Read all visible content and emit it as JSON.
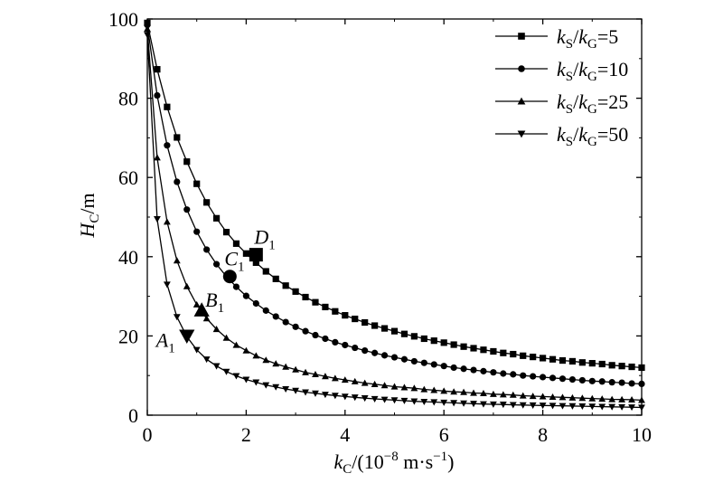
{
  "chart_data": {
    "type": "line",
    "xlabel": {
      "main": "k",
      "sub": "C",
      "rest_open": "/(10",
      "exp": "−8",
      "unit_mid": " m·s",
      "exp2": "−1",
      "rest_close": ")"
    },
    "ylabel": {
      "main": "H",
      "sub": "C",
      "rest": "/m"
    },
    "xlim": [
      0,
      10
    ],
    "ylim": [
      0,
      100
    ],
    "xticks": [
      "0",
      "2",
      "4",
      "6",
      "8",
      "10"
    ],
    "yticks": [
      "0",
      "20",
      "40",
      "60",
      "80",
      "100"
    ],
    "grid": false,
    "legend_position": "top-right",
    "x": [
      0.0,
      0.2,
      0.4,
      0.6,
      0.8,
      1.0,
      1.2,
      1.4,
      1.6,
      1.8,
      2.0,
      2.2,
      2.4,
      2.6,
      2.8,
      3.0,
      3.2,
      3.4,
      3.6,
      3.8,
      4.0,
      4.2,
      4.4,
      4.6,
      4.8,
      5.0,
      5.2,
      5.4,
      5.6,
      5.8,
      6.0,
      6.2,
      6.4,
      6.6,
      6.8,
      7.0,
      7.2,
      7.4,
      7.6,
      7.8,
      8.0,
      8.2,
      8.4,
      8.6,
      8.8,
      9.0,
      9.2,
      9.4,
      9.6,
      9.8,
      10.0
    ],
    "series": [
      {
        "name": "kS/kG=5",
        "label_k": "k",
        "label_sub1": "S",
        "label_mid": "/",
        "label_k2": "k",
        "label_sub2": "G",
        "label_val": "=5",
        "marker": "square",
        "values": [
          99.0,
          87.3,
          77.8,
          70.1,
          64.0,
          58.4,
          53.7,
          49.7,
          46.2,
          43.3,
          40.8,
          38.5,
          36.3,
          34.4,
          32.7,
          31.2,
          29.8,
          28.5,
          27.3,
          26.2,
          25.2,
          24.3,
          23.4,
          22.6,
          21.9,
          21.2,
          20.5,
          19.9,
          19.3,
          18.8,
          18.3,
          17.8,
          17.3,
          16.9,
          16.5,
          16.1,
          15.7,
          15.4,
          15.0,
          14.7,
          14.4,
          14.1,
          13.8,
          13.6,
          13.3,
          13.1,
          12.9,
          12.6,
          12.4,
          12.2,
          12.0
        ]
      },
      {
        "name": "kS/kG=10",
        "label_k": "k",
        "label_sub1": "S",
        "label_mid": "/",
        "label_k2": "k",
        "label_sub2": "G",
        "label_val": "=10",
        "marker": "circle",
        "values": [
          98.5,
          80.7,
          68.1,
          58.9,
          51.9,
          46.3,
          41.8,
          38.1,
          35.0,
          32.4,
          30.1,
          28.2,
          26.4,
          24.9,
          23.5,
          22.3,
          21.2,
          20.2,
          19.3,
          18.4,
          17.7,
          17.0,
          16.3,
          15.7,
          15.1,
          14.6,
          14.1,
          13.6,
          13.2,
          12.8,
          12.4,
          12.0,
          11.7,
          11.4,
          11.1,
          10.8,
          10.5,
          10.3,
          10.0,
          9.8,
          9.6,
          9.4,
          9.2,
          9.0,
          8.8,
          8.6,
          8.5,
          8.3,
          8.2,
          8.0,
          7.9
        ]
      },
      {
        "name": "kS/kG=25",
        "label_k": "k",
        "label_sub1": "S",
        "label_mid": "/",
        "label_k2": "k",
        "label_sub2": "G",
        "label_val": "=25",
        "marker": "triangle-up",
        "values": [
          97.5,
          65.0,
          48.8,
          39.0,
          32.5,
          27.9,
          24.4,
          21.7,
          19.5,
          17.7,
          16.3,
          15.0,
          13.9,
          13.0,
          12.2,
          11.5,
          10.8,
          10.3,
          9.8,
          9.3,
          8.9,
          8.5,
          8.1,
          7.8,
          7.5,
          7.2,
          7.0,
          6.8,
          6.5,
          6.3,
          6.1,
          5.9,
          5.8,
          5.6,
          5.5,
          5.3,
          5.2,
          5.1,
          4.9,
          4.8,
          4.7,
          4.6,
          4.5,
          4.4,
          4.3,
          4.2,
          4.1,
          4.0,
          3.95,
          3.9,
          3.8
        ]
      },
      {
        "name": "kS/kG=50",
        "label_k": "k",
        "label_sub1": "S",
        "label_mid": "/",
        "label_k2": "k",
        "label_sub2": "G",
        "label_val": "=50",
        "marker": "triangle-down",
        "values": [
          96.0,
          49.5,
          33.0,
          24.8,
          19.8,
          16.5,
          14.1,
          12.4,
          11.0,
          9.9,
          9.0,
          8.3,
          7.6,
          7.1,
          6.6,
          6.2,
          5.8,
          5.5,
          5.2,
          4.95,
          4.7,
          4.5,
          4.3,
          4.1,
          3.95,
          3.8,
          3.65,
          3.5,
          3.4,
          3.3,
          3.2,
          3.1,
          3.0,
          2.9,
          2.8,
          2.75,
          2.7,
          2.6,
          2.55,
          2.5,
          2.45,
          2.4,
          2.35,
          2.3,
          2.25,
          2.2,
          2.15,
          2.1,
          2.05,
          2.0,
          1.95
        ]
      }
    ],
    "annotations": [
      {
        "label": "A",
        "sub": "1",
        "x": 0.8,
        "y": 20.0,
        "marker": "triangle-down"
      },
      {
        "label": "B",
        "sub": "1",
        "x": 1.1,
        "y": 26.5,
        "marker": "triangle-up"
      },
      {
        "label": "C",
        "sub": "1",
        "x": 1.67,
        "y": 35.0,
        "marker": "circle"
      },
      {
        "label": "D",
        "sub": "1",
        "x": 2.2,
        "y": 40.5,
        "marker": "square"
      }
    ]
  }
}
